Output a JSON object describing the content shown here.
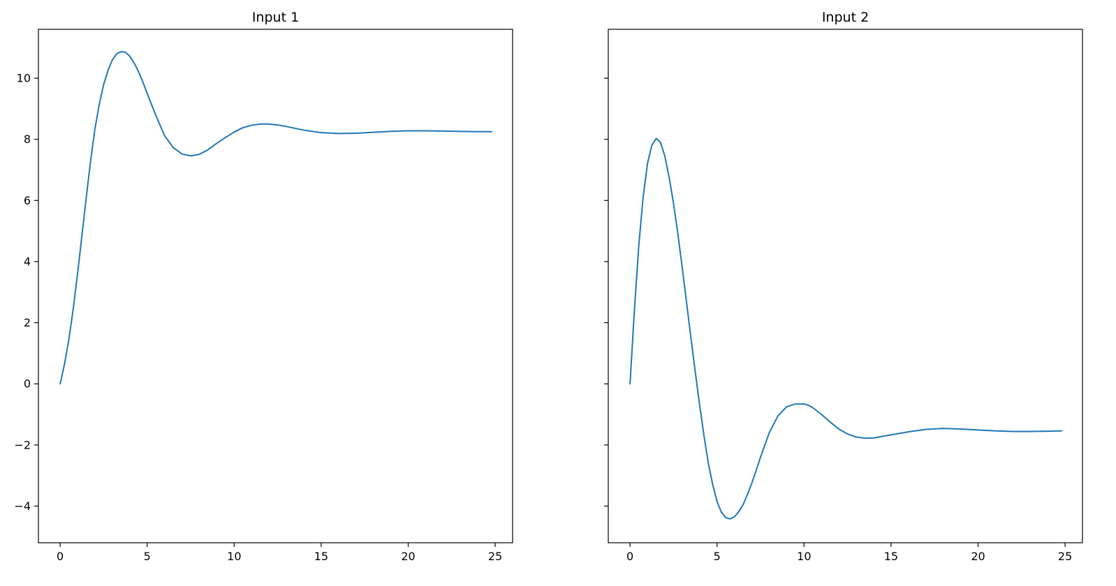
{
  "chart_data": [
    {
      "type": "line",
      "title": "Input 1",
      "xlabel": "",
      "ylabel": "",
      "xlim": [
        -1.25,
        26.0
      ],
      "ylim": [
        -5.2,
        11.6
      ],
      "xticks": [
        0,
        5,
        10,
        15,
        20,
        25
      ],
      "yticks": [
        -4,
        -2,
        0,
        2,
        4,
        6,
        8,
        10
      ],
      "grid": false,
      "color": "#1f77b4",
      "x": [
        0.0,
        0.25,
        0.5,
        0.75,
        1.0,
        1.25,
        1.5,
        1.75,
        2.0,
        2.25,
        2.5,
        2.75,
        3.0,
        3.25,
        3.5,
        3.75,
        4.0,
        4.25,
        4.5,
        4.75,
        5.0,
        5.5,
        6.0,
        6.5,
        7.0,
        7.5,
        8.0,
        8.5,
        9.0,
        9.5,
        10.0,
        10.5,
        11.0,
        11.5,
        12.0,
        12.5,
        13.0,
        14.0,
        15.0,
        16.0,
        17.0,
        18.0,
        19.0,
        20.0,
        21.0,
        22.0,
        23.0,
        24.0,
        24.8
      ],
      "values": [
        0.0,
        0.65,
        1.45,
        2.45,
        3.6,
        4.85,
        6.1,
        7.3,
        8.35,
        9.15,
        9.8,
        10.25,
        10.6,
        10.8,
        10.87,
        10.85,
        10.72,
        10.5,
        10.22,
        9.88,
        9.5,
        8.78,
        8.12,
        7.73,
        7.52,
        7.46,
        7.51,
        7.66,
        7.87,
        8.06,
        8.24,
        8.38,
        8.46,
        8.5,
        8.5,
        8.47,
        8.42,
        8.3,
        8.22,
        8.19,
        8.2,
        8.23,
        8.26,
        8.28,
        8.28,
        8.27,
        8.26,
        8.25,
        8.25
      ]
    },
    {
      "type": "line",
      "title": "Input 2",
      "xlabel": "",
      "ylabel": "",
      "xlim": [
        -1.25,
        26.0
      ],
      "ylim": [
        -5.2,
        11.6
      ],
      "xticks": [
        0,
        5,
        10,
        15,
        20,
        25
      ],
      "yticks": [
        -4,
        -2,
        0,
        2,
        4,
        6,
        8,
        10
      ],
      "grid": false,
      "color": "#1f77b4",
      "x": [
        0.0,
        0.25,
        0.5,
        0.75,
        1.0,
        1.25,
        1.5,
        1.75,
        2.0,
        2.25,
        2.5,
        2.75,
        3.0,
        3.25,
        3.5,
        3.75,
        4.0,
        4.25,
        4.5,
        4.75,
        5.0,
        5.25,
        5.5,
        5.75,
        6.0,
        6.25,
        6.5,
        6.75,
        7.0,
        7.5,
        8.0,
        8.5,
        9.0,
        9.5,
        10.0,
        10.25,
        10.5,
        11.0,
        11.5,
        12.0,
        12.5,
        13.0,
        13.5,
        14.0,
        14.5,
        15.0,
        16.0,
        17.0,
        18.0,
        19.0,
        20.0,
        21.0,
        22.0,
        23.0,
        24.0,
        24.8
      ],
      "values": [
        0.0,
        2.4,
        4.5,
        6.1,
        7.2,
        7.8,
        8.03,
        7.9,
        7.45,
        6.75,
        5.9,
        4.9,
        3.8,
        2.65,
        1.5,
        0.38,
        -0.7,
        -1.7,
        -2.6,
        -3.3,
        -3.85,
        -4.2,
        -4.38,
        -4.42,
        -4.35,
        -4.18,
        -3.95,
        -3.62,
        -3.25,
        -2.4,
        -1.6,
        -1.05,
        -0.75,
        -0.66,
        -0.66,
        -0.7,
        -0.78,
        -1.0,
        -1.25,
        -1.48,
        -1.64,
        -1.74,
        -1.78,
        -1.77,
        -1.72,
        -1.67,
        -1.57,
        -1.49,
        -1.46,
        -1.48,
        -1.51,
        -1.54,
        -1.56,
        -1.56,
        -1.55,
        -1.54
      ]
    }
  ]
}
